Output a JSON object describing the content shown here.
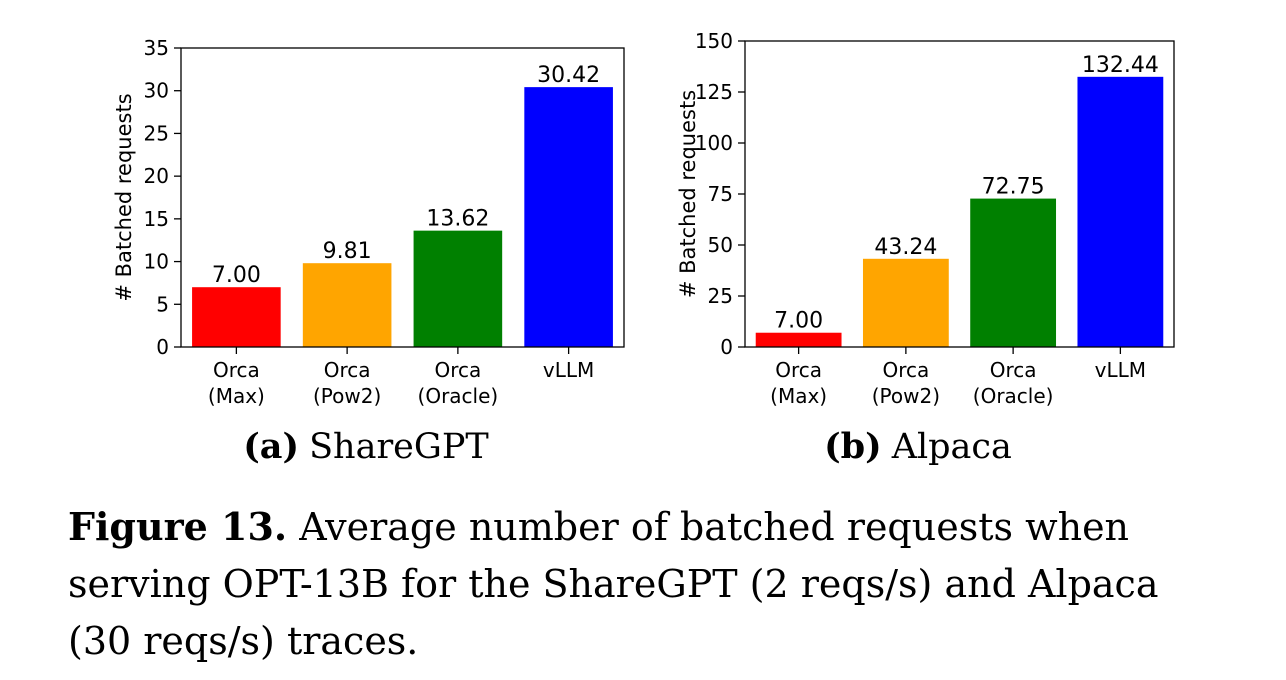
{
  "chart_data": [
    {
      "type": "bar",
      "panel_label": "(a)",
      "panel_title": "ShareGPT",
      "categories": [
        [
          "Orca",
          "(Max)"
        ],
        [
          "Orca",
          "(Pow2)"
        ],
        [
          "Orca",
          "(Oracle)"
        ],
        [
          "vLLM"
        ]
      ],
      "values": [
        7.0,
        9.81,
        13.62,
        30.42
      ],
      "value_labels": [
        "7.00",
        "9.81",
        "13.62",
        "30.42"
      ],
      "colors": [
        "#ff0000",
        "#ffa500",
        "#008000",
        "#0000ff"
      ],
      "ylabel": "# Batched requests",
      "ylim": [
        0,
        35
      ],
      "yticks": [
        0,
        5,
        10,
        15,
        20,
        25,
        30,
        35
      ],
      "grid": false
    },
    {
      "type": "bar",
      "panel_label": "(b)",
      "panel_title": "Alpaca",
      "categories": [
        [
          "Orca",
          "(Max)"
        ],
        [
          "Orca",
          "(Pow2)"
        ],
        [
          "Orca",
          "(Oracle)"
        ],
        [
          "vLLM"
        ]
      ],
      "values": [
        7.0,
        43.24,
        72.75,
        132.44
      ],
      "value_labels": [
        "7.00",
        "43.24",
        "72.75",
        "132.44"
      ],
      "colors": [
        "#ff0000",
        "#ffa500",
        "#008000",
        "#0000ff"
      ],
      "ylabel": "# Batched requests",
      "ylim": [
        0,
        150
      ],
      "yticks": [
        0,
        25,
        50,
        75,
        100,
        125,
        150
      ],
      "grid": false
    }
  ],
  "caption": {
    "label": "Figure 13.",
    "text": "Average number of batched requests when serving OPT-13B for the ShareGPT (2 reqs/s) and Alpaca (30 reqs/s) traces."
  }
}
